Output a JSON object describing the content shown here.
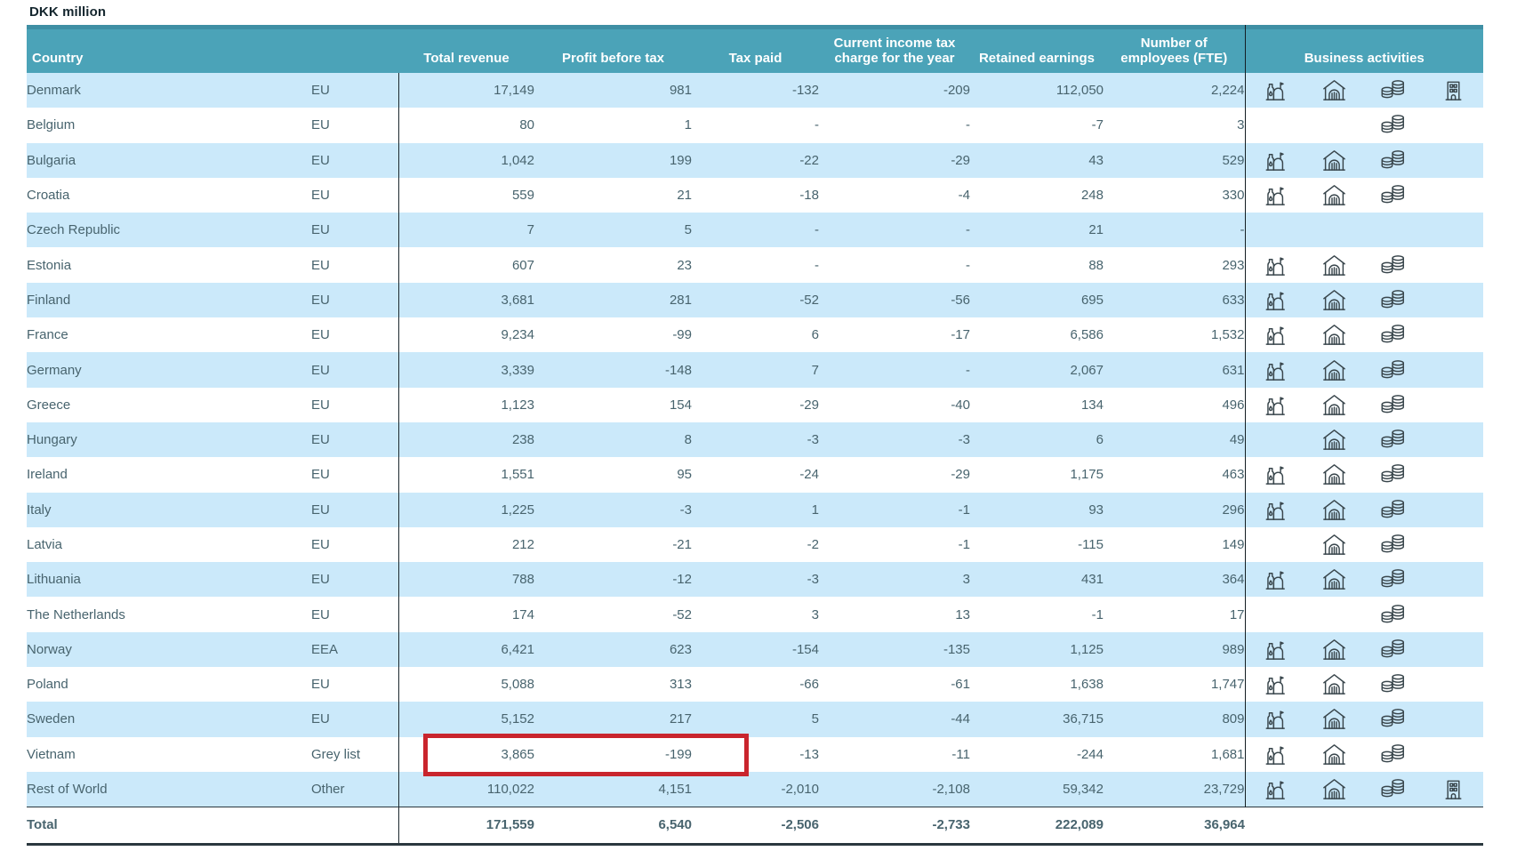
{
  "title": "DKK million",
  "colors": {
    "header_bg": "#4ba3b8",
    "header_bg_top_edge": "#3f8fa4",
    "row_alt_bg": "#cbe9fa",
    "body_text": "#48646e",
    "country_text": "#2a4b57",
    "total_text": "#1b333c",
    "header_text": "#ffffff",
    "highlight_red": "#c9252d",
    "rule_dark": "#1c282e"
  },
  "table": {
    "header": {
      "country": "Country",
      "total_revenue": "Total revenue",
      "profit_before_tax": "Profit before tax",
      "tax_paid": "Tax paid",
      "current_income_tax_charge": "Current income tax\ncharge for the year",
      "retained_earnings": "Retained earnings",
      "employees_fte": "Number of\nemployees (FTE)",
      "business_activities": "Business activities"
    },
    "business_activity_icon_names": [
      "production-facility-icon",
      "warehouse-icon",
      "coins-icon",
      "office-building-icon"
    ],
    "rows": [
      {
        "country": "Denmark",
        "region": "EU",
        "total_revenue": "17,149",
        "profit_before_tax": "981",
        "tax_paid": "-132",
        "current_income_tax_charge": "-209",
        "retained_earnings": "112,050",
        "employees_fte": "2,224",
        "activities": [
          "production",
          "warehouse",
          "coins",
          "office-building"
        ]
      },
      {
        "country": "Belgium",
        "region": "EU",
        "total_revenue": "80",
        "profit_before_tax": "1",
        "tax_paid": "-",
        "current_income_tax_charge": "-",
        "retained_earnings": "-7",
        "employees_fte": "3",
        "activities": [
          "coins"
        ]
      },
      {
        "country": "Bulgaria",
        "region": "EU",
        "total_revenue": "1,042",
        "profit_before_tax": "199",
        "tax_paid": "-22",
        "current_income_tax_charge": "-29",
        "retained_earnings": "43",
        "employees_fte": "529",
        "activities": [
          "production",
          "warehouse",
          "coins"
        ]
      },
      {
        "country": "Croatia",
        "region": "EU",
        "total_revenue": "559",
        "profit_before_tax": "21",
        "tax_paid": "-18",
        "current_income_tax_charge": "-4",
        "retained_earnings": "248",
        "employees_fte": "330",
        "activities": [
          "production",
          "warehouse",
          "coins"
        ]
      },
      {
        "country": "Czech Republic",
        "region": "EU",
        "total_revenue": "7",
        "profit_before_tax": "5",
        "tax_paid": "-",
        "current_income_tax_charge": "-",
        "retained_earnings": "21",
        "employees_fte": "-",
        "activities": []
      },
      {
        "country": "Estonia",
        "region": "EU",
        "total_revenue": "607",
        "profit_before_tax": "23",
        "tax_paid": "-",
        "current_income_tax_charge": "-",
        "retained_earnings": "88",
        "employees_fte": "293",
        "activities": [
          "production",
          "warehouse",
          "coins"
        ]
      },
      {
        "country": "Finland",
        "region": "EU",
        "total_revenue": "3,681",
        "profit_before_tax": "281",
        "tax_paid": "-52",
        "current_income_tax_charge": "-56",
        "retained_earnings": "695",
        "employees_fte": "633",
        "activities": [
          "production",
          "warehouse",
          "coins"
        ]
      },
      {
        "country": "France",
        "region": "EU",
        "total_revenue": "9,234",
        "profit_before_tax": "-99",
        "tax_paid": "6",
        "current_income_tax_charge": "-17",
        "retained_earnings": "6,586",
        "employees_fte": "1,532",
        "activities": [
          "production",
          "warehouse",
          "coins"
        ]
      },
      {
        "country": "Germany",
        "region": "EU",
        "total_revenue": "3,339",
        "profit_before_tax": "-148",
        "tax_paid": "7",
        "current_income_tax_charge": "-",
        "retained_earnings": "2,067",
        "employees_fte": "631",
        "activities": [
          "production",
          "warehouse",
          "coins"
        ]
      },
      {
        "country": "Greece",
        "region": "EU",
        "total_revenue": "1,123",
        "profit_before_tax": "154",
        "tax_paid": "-29",
        "current_income_tax_charge": "-40",
        "retained_earnings": "134",
        "employees_fte": "496",
        "activities": [
          "production",
          "warehouse",
          "coins"
        ]
      },
      {
        "country": "Hungary",
        "region": "EU",
        "total_revenue": "238",
        "profit_before_tax": "8",
        "tax_paid": "-3",
        "current_income_tax_charge": "-3",
        "retained_earnings": "6",
        "employees_fte": "49",
        "activities": [
          "warehouse",
          "coins"
        ]
      },
      {
        "country": "Ireland",
        "region": "EU",
        "total_revenue": "1,551",
        "profit_before_tax": "95",
        "tax_paid": "-24",
        "current_income_tax_charge": "-29",
        "retained_earnings": "1,175",
        "employees_fte": "463",
        "activities": [
          "production",
          "warehouse",
          "coins"
        ]
      },
      {
        "country": "Italy",
        "region": "EU",
        "total_revenue": "1,225",
        "profit_before_tax": "-3",
        "tax_paid": "1",
        "current_income_tax_charge": "-1",
        "retained_earnings": "93",
        "employees_fte": "296",
        "activities": [
          "production",
          "warehouse",
          "coins"
        ]
      },
      {
        "country": "Latvia",
        "region": "EU",
        "total_revenue": "212",
        "profit_before_tax": "-21",
        "tax_paid": "-2",
        "current_income_tax_charge": "-1",
        "retained_earnings": "-115",
        "employees_fte": "149",
        "activities": [
          "warehouse",
          "coins"
        ]
      },
      {
        "country": "Lithuania",
        "region": "EU",
        "total_revenue": "788",
        "profit_before_tax": "-12",
        "tax_paid": "-3",
        "current_income_tax_charge": "3",
        "retained_earnings": "431",
        "employees_fte": "364",
        "activities": [
          "production",
          "warehouse",
          "coins"
        ]
      },
      {
        "country": "The Netherlands",
        "region": "EU",
        "total_revenue": "174",
        "profit_before_tax": "-52",
        "tax_paid": "3",
        "current_income_tax_charge": "13",
        "retained_earnings": "-1",
        "employees_fte": "17",
        "activities": [
          "coins"
        ]
      },
      {
        "country": "Norway",
        "region": "EEA",
        "total_revenue": "6,421",
        "profit_before_tax": "623",
        "tax_paid": "-154",
        "current_income_tax_charge": "-135",
        "retained_earnings": "1,125",
        "employees_fte": "989",
        "activities": [
          "production",
          "warehouse",
          "coins"
        ]
      },
      {
        "country": "Poland",
        "region": "EU",
        "total_revenue": "5,088",
        "profit_before_tax": "313",
        "tax_paid": "-66",
        "current_income_tax_charge": "-61",
        "retained_earnings": "1,638",
        "employees_fte": "1,747",
        "activities": [
          "production",
          "warehouse",
          "coins"
        ]
      },
      {
        "country": "Sweden",
        "region": "EU",
        "total_revenue": "5,152",
        "profit_before_tax": "217",
        "tax_paid": "5",
        "current_income_tax_charge": "-44",
        "retained_earnings": "36,715",
        "employees_fte": "809",
        "activities": [
          "production",
          "warehouse",
          "coins"
        ]
      },
      {
        "country": "Vietnam",
        "region": "Grey list",
        "total_revenue": "3,865",
        "profit_before_tax": "-199",
        "tax_paid": "-13",
        "current_income_tax_charge": "-11",
        "retained_earnings": "-244",
        "employees_fte": "1,681",
        "activities": [
          "production",
          "warehouse",
          "coins"
        ],
        "highlight": [
          "total_revenue",
          "profit_before_tax"
        ]
      },
      {
        "country": "Rest of World",
        "region": "Other",
        "total_revenue": "110,022",
        "profit_before_tax": "4,151",
        "tax_paid": "-2,010",
        "current_income_tax_charge": "-2,108",
        "retained_earnings": "59,342",
        "employees_fte": "23,729",
        "activities": [
          "production",
          "warehouse",
          "coins",
          "office-building"
        ]
      }
    ],
    "total": {
      "label": "Total",
      "total_revenue": "171,559",
      "profit_before_tax": "6,540",
      "tax_paid": "-2,506",
      "current_income_tax_charge": "-2,733",
      "retained_earnings": "222,089",
      "employees_fte": "36,964"
    }
  }
}
